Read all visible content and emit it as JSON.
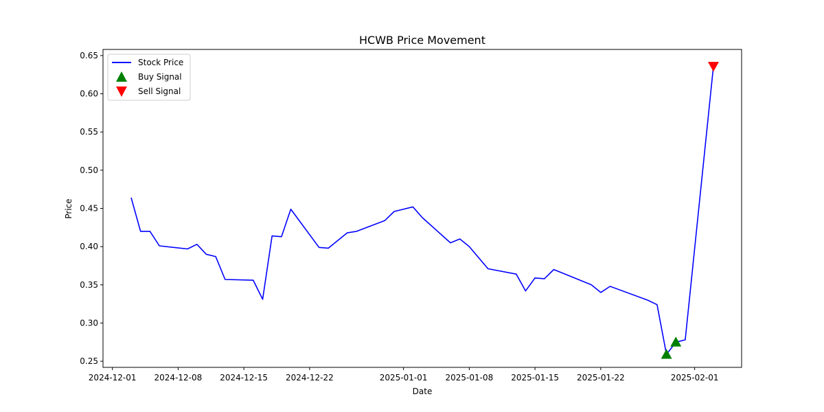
{
  "chart_data": {
    "type": "line",
    "title": "HCWB Price Movement",
    "xlabel": "Date",
    "ylabel": "Price",
    "grid": false,
    "legend_position": "top-left",
    "xlim": [
      "2024-11-30",
      "2025-02-06"
    ],
    "ylim": [
      0.242,
      0.658
    ],
    "x_ticks": [
      "2024-12-01",
      "2024-12-08",
      "2024-12-15",
      "2024-12-22",
      "2025-01-01",
      "2025-01-08",
      "2025-01-15",
      "2025-01-22",
      "2025-02-01"
    ],
    "y_ticks": [
      0.25,
      0.3,
      0.35,
      0.4,
      0.45,
      0.5,
      0.55,
      0.6,
      0.65
    ],
    "series": [
      {
        "name": "Stock Price",
        "color": "#0000ff",
        "style": "line",
        "points": [
          {
            "x": "2024-12-03",
            "y": 0.464
          },
          {
            "x": "2024-12-04",
            "y": 0.42
          },
          {
            "x": "2024-12-05",
            "y": 0.42
          },
          {
            "x": "2024-12-06",
            "y": 0.401
          },
          {
            "x": "2024-12-09",
            "y": 0.397
          },
          {
            "x": "2024-12-10",
            "y": 0.403
          },
          {
            "x": "2024-12-11",
            "y": 0.39
          },
          {
            "x": "2024-12-12",
            "y": 0.387
          },
          {
            "x": "2024-12-13",
            "y": 0.357
          },
          {
            "x": "2024-12-16",
            "y": 0.356
          },
          {
            "x": "2024-12-17",
            "y": 0.331
          },
          {
            "x": "2024-12-18",
            "y": 0.414
          },
          {
            "x": "2024-12-19",
            "y": 0.413
          },
          {
            "x": "2024-12-20",
            "y": 0.449
          },
          {
            "x": "2024-12-23",
            "y": 0.399
          },
          {
            "x": "2024-12-24",
            "y": 0.398
          },
          {
            "x": "2024-12-26",
            "y": 0.418
          },
          {
            "x": "2024-12-27",
            "y": 0.42
          },
          {
            "x": "2024-12-30",
            "y": 0.434
          },
          {
            "x": "2024-12-31",
            "y": 0.446
          },
          {
            "x": "2025-01-02",
            "y": 0.452
          },
          {
            "x": "2025-01-03",
            "y": 0.438
          },
          {
            "x": "2025-01-06",
            "y": 0.405
          },
          {
            "x": "2025-01-07",
            "y": 0.41
          },
          {
            "x": "2025-01-08",
            "y": 0.4
          },
          {
            "x": "2025-01-10",
            "y": 0.371
          },
          {
            "x": "2025-01-13",
            "y": 0.364
          },
          {
            "x": "2025-01-14",
            "y": 0.342
          },
          {
            "x": "2025-01-15",
            "y": 0.359
          },
          {
            "x": "2025-01-16",
            "y": 0.358
          },
          {
            "x": "2025-01-17",
            "y": 0.37
          },
          {
            "x": "2025-01-21",
            "y": 0.35
          },
          {
            "x": "2025-01-22",
            "y": 0.34
          },
          {
            "x": "2025-01-23",
            "y": 0.348
          },
          {
            "x": "2025-01-27",
            "y": 0.33
          },
          {
            "x": "2025-01-28",
            "y": 0.324
          },
          {
            "x": "2025-01-29",
            "y": 0.259
          },
          {
            "x": "2025-01-30",
            "y": 0.275
          },
          {
            "x": "2025-01-31",
            "y": 0.278
          },
          {
            "x": "2025-02-03",
            "y": 0.636
          }
        ]
      },
      {
        "name": "Buy Signal",
        "color": "#008000",
        "style": "marker-triangle-up",
        "points": [
          {
            "x": "2025-01-29",
            "y": 0.259
          },
          {
            "x": "2025-01-30",
            "y": 0.275
          }
        ]
      },
      {
        "name": "Sell Signal",
        "color": "#ff0000",
        "style": "marker-triangle-down",
        "points": [
          {
            "x": "2025-02-03",
            "y": 0.636
          }
        ]
      }
    ]
  }
}
